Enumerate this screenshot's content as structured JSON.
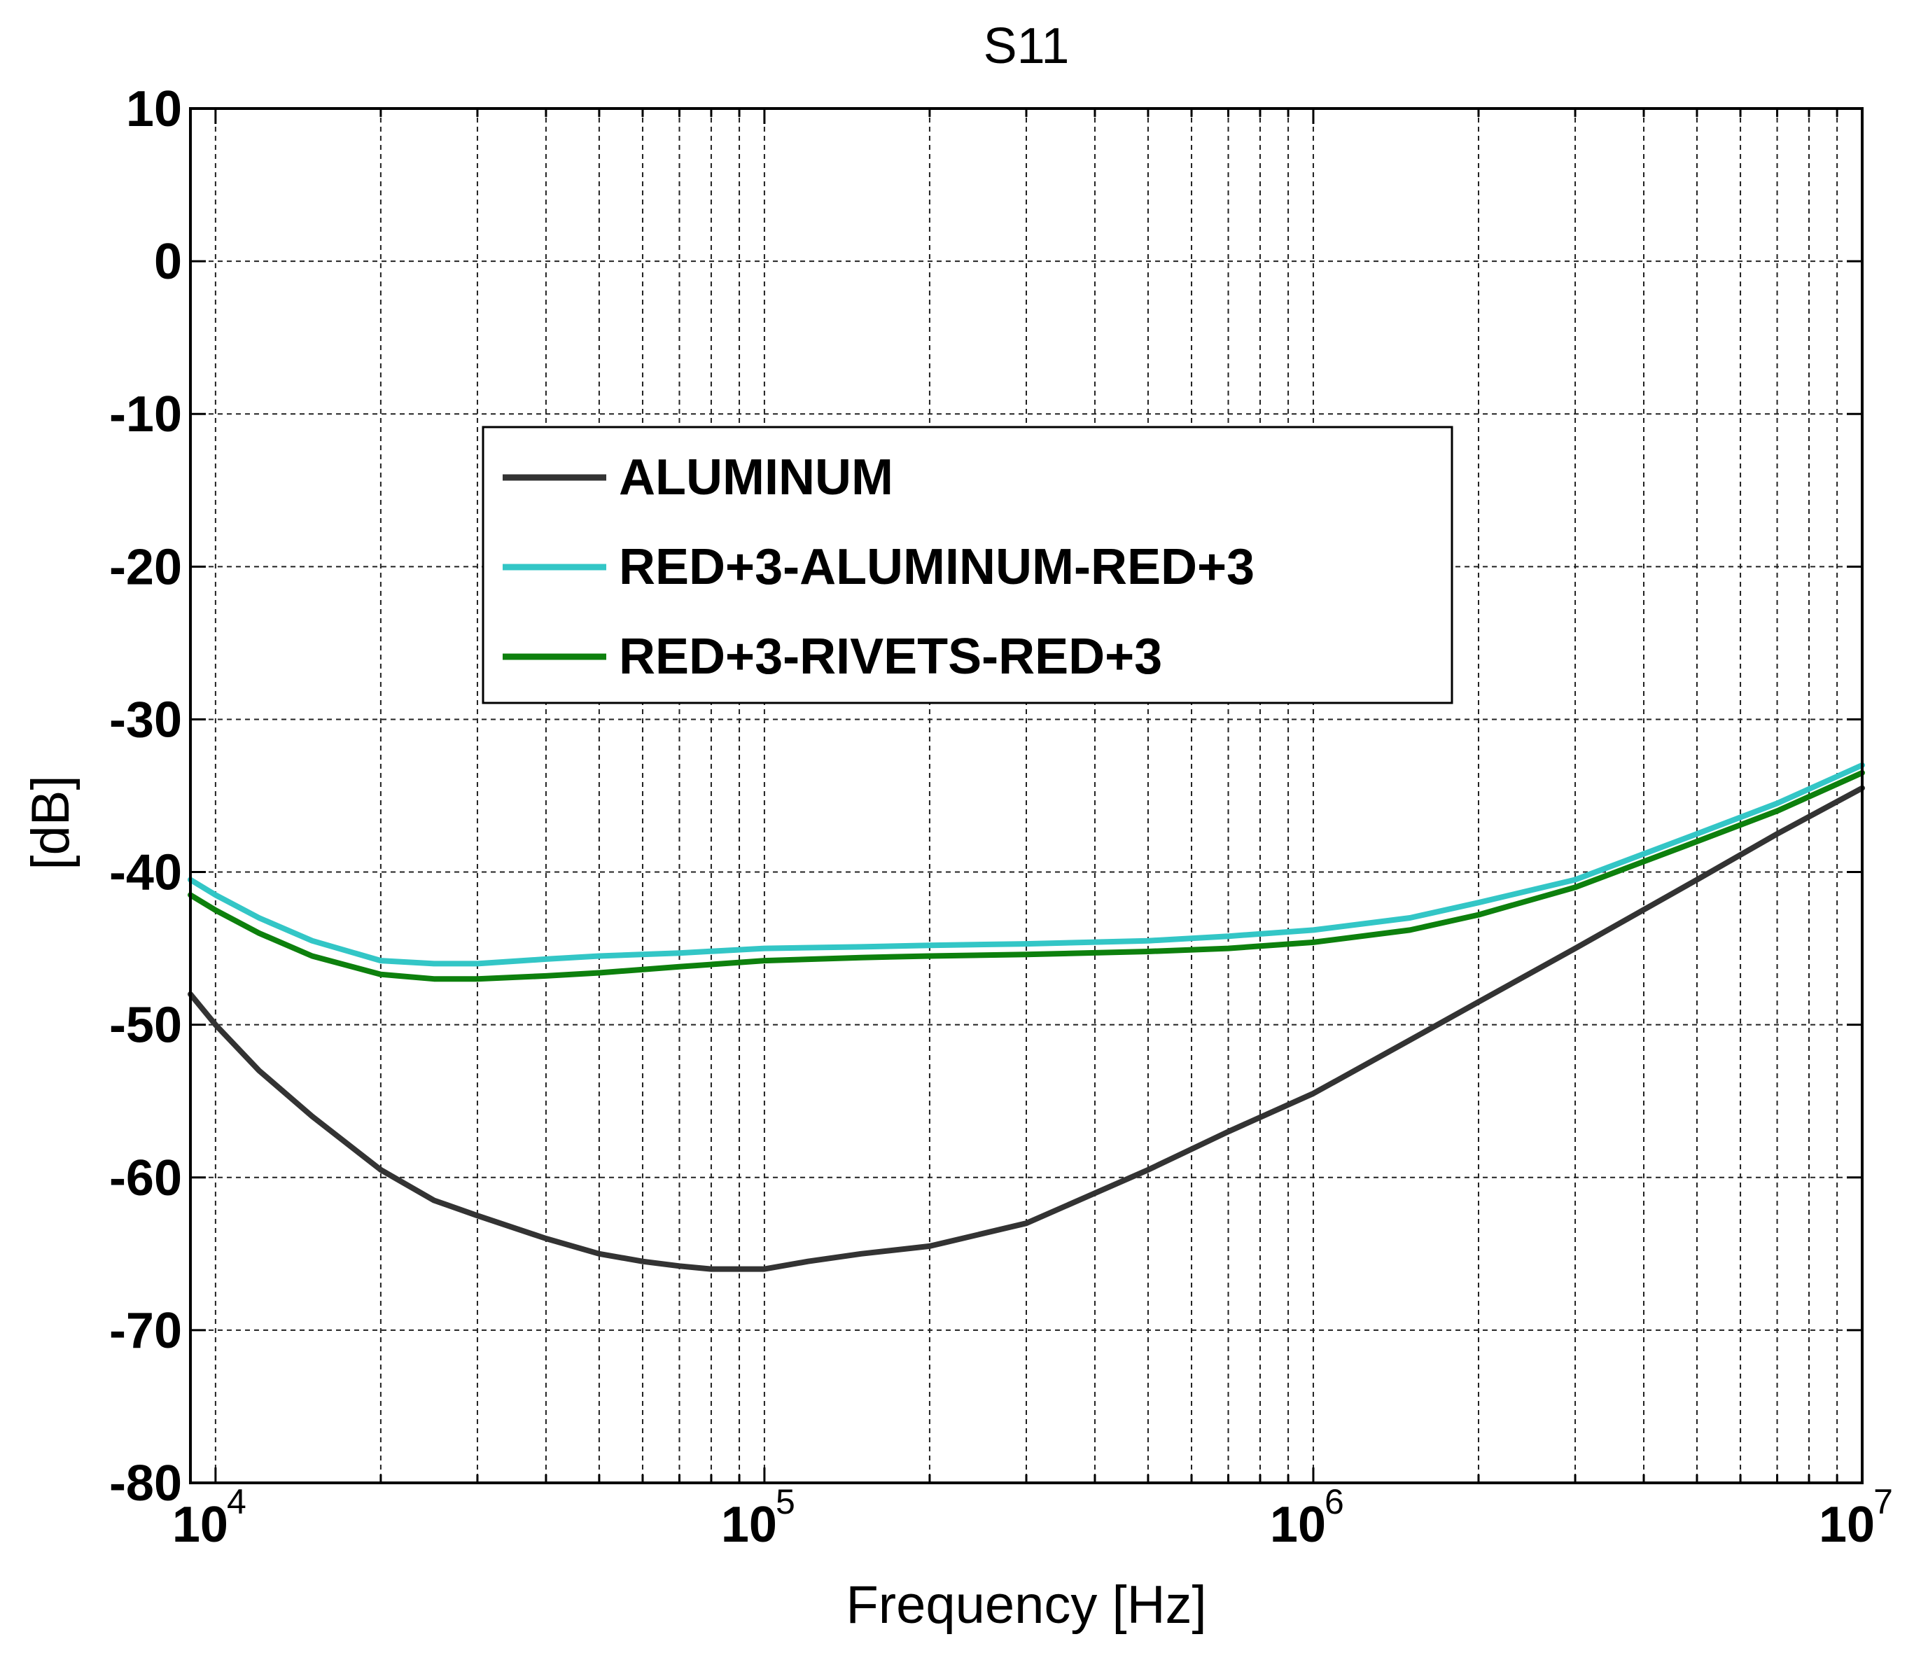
{
  "chart_data": {
    "type": "line",
    "title": "S11",
    "xlabel": "Frequency [Hz]",
    "ylabel": "[dB]",
    "xscale": "log",
    "xlim": [
      9000,
      10000000
    ],
    "ylim": [
      -80,
      10
    ],
    "grid": true,
    "legend_position": "upper-center",
    "y_ticks": [
      10,
      0,
      -10,
      -20,
      -30,
      -40,
      -50,
      -60,
      -70,
      -80
    ],
    "y_tick_labels": [
      "10",
      "0",
      "-10",
      "-20",
      "-30",
      "-40",
      "-50",
      "-60",
      "-70",
      "-80"
    ],
    "x_ticks": [
      10000,
      100000,
      1000000,
      10000000
    ],
    "x_tick_bases": [
      "10",
      "10",
      "10",
      "10"
    ],
    "x_tick_exponents": [
      "4",
      "5",
      "6",
      "7"
    ],
    "series": [
      {
        "name": "ALUMINUM",
        "color": "#333333",
        "x": [
          9000,
          10000,
          12000,
          15000,
          20000,
          25000,
          30000,
          40000,
          50000,
          60000,
          70000,
          80000,
          90000,
          100000,
          120000,
          150000,
          200000,
          300000,
          500000,
          700000,
          1000000,
          1500000,
          2000000,
          3000000,
          5000000,
          7000000,
          10000000
        ],
        "y": [
          -48,
          -50,
          -53,
          -56,
          -59.5,
          -61.5,
          -62.5,
          -64,
          -65,
          -65.5,
          -65.8,
          -66,
          -66,
          -66,
          -65.5,
          -65,
          -64.5,
          -63,
          -59.5,
          -57,
          -54.5,
          -51,
          -48.5,
          -45,
          -40.5,
          -37.5,
          -34.5
        ]
      },
      {
        "name": "RED+3-ALUMINUM-RED+3",
        "color": "#33C6C6",
        "x": [
          9000,
          10000,
          12000,
          15000,
          20000,
          25000,
          30000,
          40000,
          50000,
          70000,
          100000,
          150000,
          200000,
          300000,
          500000,
          700000,
          1000000,
          1500000,
          2000000,
          3000000,
          5000000,
          7000000,
          10000000
        ],
        "y": [
          -40.5,
          -41.5,
          -43,
          -44.5,
          -45.8,
          -46,
          -46,
          -45.7,
          -45.5,
          -45.3,
          -45,
          -44.9,
          -44.8,
          -44.7,
          -44.5,
          -44.2,
          -43.8,
          -43,
          -42,
          -40.5,
          -37.5,
          -35.5,
          -33
        ]
      },
      {
        "name": "RED+3-RIVETS-RED+3",
        "color": "#0D800D",
        "x": [
          9000,
          10000,
          12000,
          15000,
          20000,
          25000,
          30000,
          40000,
          50000,
          70000,
          100000,
          150000,
          200000,
          300000,
          500000,
          700000,
          1000000,
          1500000,
          2000000,
          3000000,
          5000000,
          7000000,
          10000000
        ],
        "y": [
          -41.5,
          -42.5,
          -44,
          -45.5,
          -46.7,
          -47,
          -47,
          -46.8,
          -46.6,
          -46.2,
          -45.8,
          -45.6,
          -45.5,
          -45.4,
          -45.2,
          -45,
          -44.6,
          -43.8,
          -42.8,
          -41,
          -38,
          -36,
          -33.5
        ]
      }
    ]
  }
}
